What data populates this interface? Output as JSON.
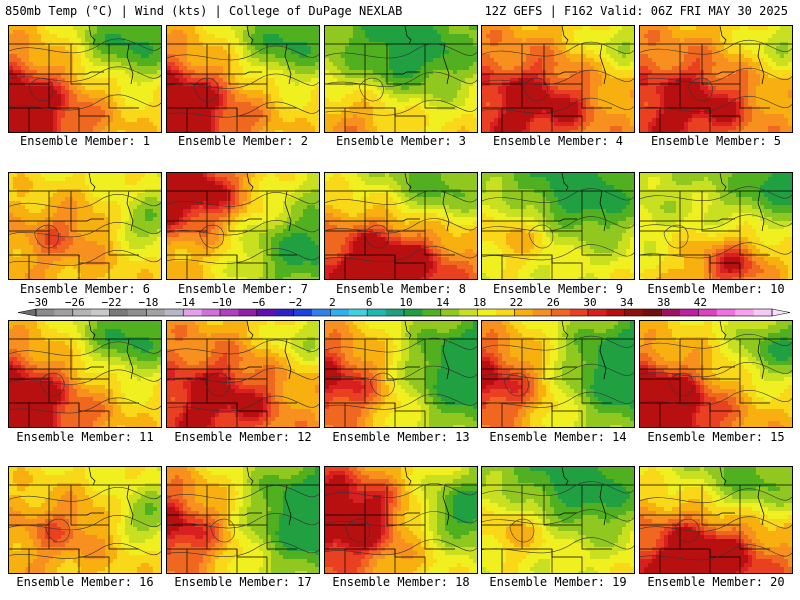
{
  "header": {
    "left": "850mb Temp (°C) | Wind (kts) | College of DuPage NEXLAB",
    "right": "12Z GEFS | F162 Valid: 06Z FRI MAY 30 2025"
  },
  "colorbar": {
    "ticks": [
      "-30",
      "-26",
      "-22",
      "-18",
      "-14",
      "-10",
      "-6",
      "-2",
      "2",
      "6",
      "10",
      "14",
      "18",
      "22",
      "26",
      "30",
      "34",
      "38",
      "42"
    ],
    "colors": [
      "#8c8c8c",
      "#a0a0a0",
      "#b4b4b4",
      "#c8c8c8",
      "#7a7a7a",
      "#8e8e8e",
      "#a2a2a2",
      "#b6b6c8",
      "#e4a0e8",
      "#d070d8",
      "#b040c0",
      "#9020a8",
      "#6010b0",
      "#3020c8",
      "#2040e0",
      "#3080f0",
      "#30b0f0",
      "#40d0e0",
      "#20b8b0",
      "#20a080",
      "#20a040",
      "#50b020",
      "#90c820",
      "#c8e020",
      "#f0f020",
      "#f8d818",
      "#f8b010",
      "#f89020",
      "#f06820",
      "#e84020",
      "#d82020",
      "#b81010",
      "#901010",
      "#701010",
      "#a01060",
      "#c020a0",
      "#e040c0",
      "#f070e0",
      "#f8a0f0",
      "#f8c8f8"
    ]
  },
  "panels": [
    {
      "label": "Ensemble Member: 1",
      "profile": "warm-sw"
    },
    {
      "label": "Ensemble Member: 2",
      "profile": "warm-sw"
    },
    {
      "label": "Ensemble Member: 3",
      "profile": "cool-north"
    },
    {
      "label": "Ensemble Member: 4",
      "profile": "hot"
    },
    {
      "label": "Ensemble Member: 5",
      "profile": "hot"
    },
    {
      "label": "Ensemble Member: 6",
      "profile": "warm"
    },
    {
      "label": "Ensemble Member: 7",
      "profile": "hot-nw"
    },
    {
      "label": "Ensemble Member: 8",
      "profile": "hot-south"
    },
    {
      "label": "Ensemble Member: 9",
      "profile": "cool-ne"
    },
    {
      "label": "Ensemble Member: 10",
      "profile": "mild"
    },
    {
      "label": "Ensemble Member: 11",
      "profile": "warm-sw"
    },
    {
      "label": "Ensemble Member: 12",
      "profile": "hot"
    },
    {
      "label": "Ensemble Member: 13",
      "profile": "cool-east"
    },
    {
      "label": "Ensemble Member: 14",
      "profile": "cool-east"
    },
    {
      "label": "Ensemble Member: 15",
      "profile": "hot-sw"
    },
    {
      "label": "Ensemble Member: 16",
      "profile": "warm"
    },
    {
      "label": "Ensemble Member: 17",
      "profile": "cool-east"
    },
    {
      "label": "Ensemble Member: 18",
      "profile": "hot-west"
    },
    {
      "label": "Ensemble Member: 19",
      "profile": "cool-ne"
    },
    {
      "label": "Ensemble Member: 20",
      "profile": "hot-south"
    }
  ]
}
